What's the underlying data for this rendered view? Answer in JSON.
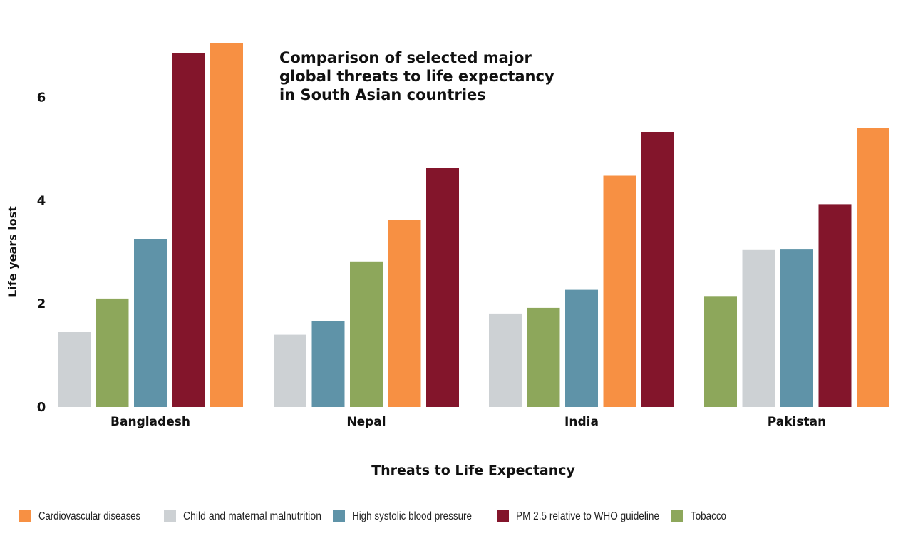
{
  "chart_data": {
    "type": "bar",
    "title": [
      "Comparison of selected major",
      "global threats to life expectancy",
      "in South Asian countries"
    ],
    "xlabel": "Threats to Life Expectancy",
    "ylabel": "Life years lost",
    "ylim": [
      0,
      7
    ],
    "yticks": [
      "0",
      "2",
      "4",
      "6"
    ],
    "ytick_values": [
      0,
      2,
      4,
      6
    ],
    "grid": false,
    "legend_position": "bottom",
    "series": [
      {
        "key": "cvd",
        "name": "Cardiovascular diseases",
        "color": "#F79043"
      },
      {
        "key": "cmm",
        "name": "Child and maternal malnutrition",
        "color": "#CDD1D4"
      },
      {
        "key": "hbp",
        "name": "High systolic blood pressure",
        "color": "#5F93A8"
      },
      {
        "key": "pm25",
        "name": "PM 2.5 relative to WHO guideline",
        "color": "#83152B"
      },
      {
        "key": "tob",
        "name": "Tobacco",
        "color": "#8DA75B"
      }
    ],
    "groups": [
      {
        "category": "Bangladesh",
        "bars": [
          {
            "series": "cmm",
            "value": 1.45
          },
          {
            "series": "tob",
            "value": 2.1
          },
          {
            "series": "hbp",
            "value": 3.25
          },
          {
            "series": "pm25",
            "value": 6.85
          },
          {
            "series": "cvd",
            "value": 7.05
          }
        ]
      },
      {
        "category": "Nepal",
        "bars": [
          {
            "series": "cmm",
            "value": 1.4
          },
          {
            "series": "hbp",
            "value": 1.67
          },
          {
            "series": "tob",
            "value": 2.82
          },
          {
            "series": "cvd",
            "value": 3.63
          },
          {
            "series": "pm25",
            "value": 4.63
          }
        ]
      },
      {
        "category": "India",
        "bars": [
          {
            "series": "cmm",
            "value": 1.81
          },
          {
            "series": "tob",
            "value": 1.92
          },
          {
            "series": "hbp",
            "value": 2.27
          },
          {
            "series": "cvd",
            "value": 4.48
          },
          {
            "series": "pm25",
            "value": 5.33
          }
        ]
      },
      {
        "category": "Pakistan",
        "bars": [
          {
            "series": "tob",
            "value": 2.15
          },
          {
            "series": "cmm",
            "value": 3.04
          },
          {
            "series": "hbp",
            "value": 3.05
          },
          {
            "series": "pm25",
            "value": 3.93
          },
          {
            "series": "cvd",
            "value": 5.4
          }
        ]
      }
    ]
  }
}
